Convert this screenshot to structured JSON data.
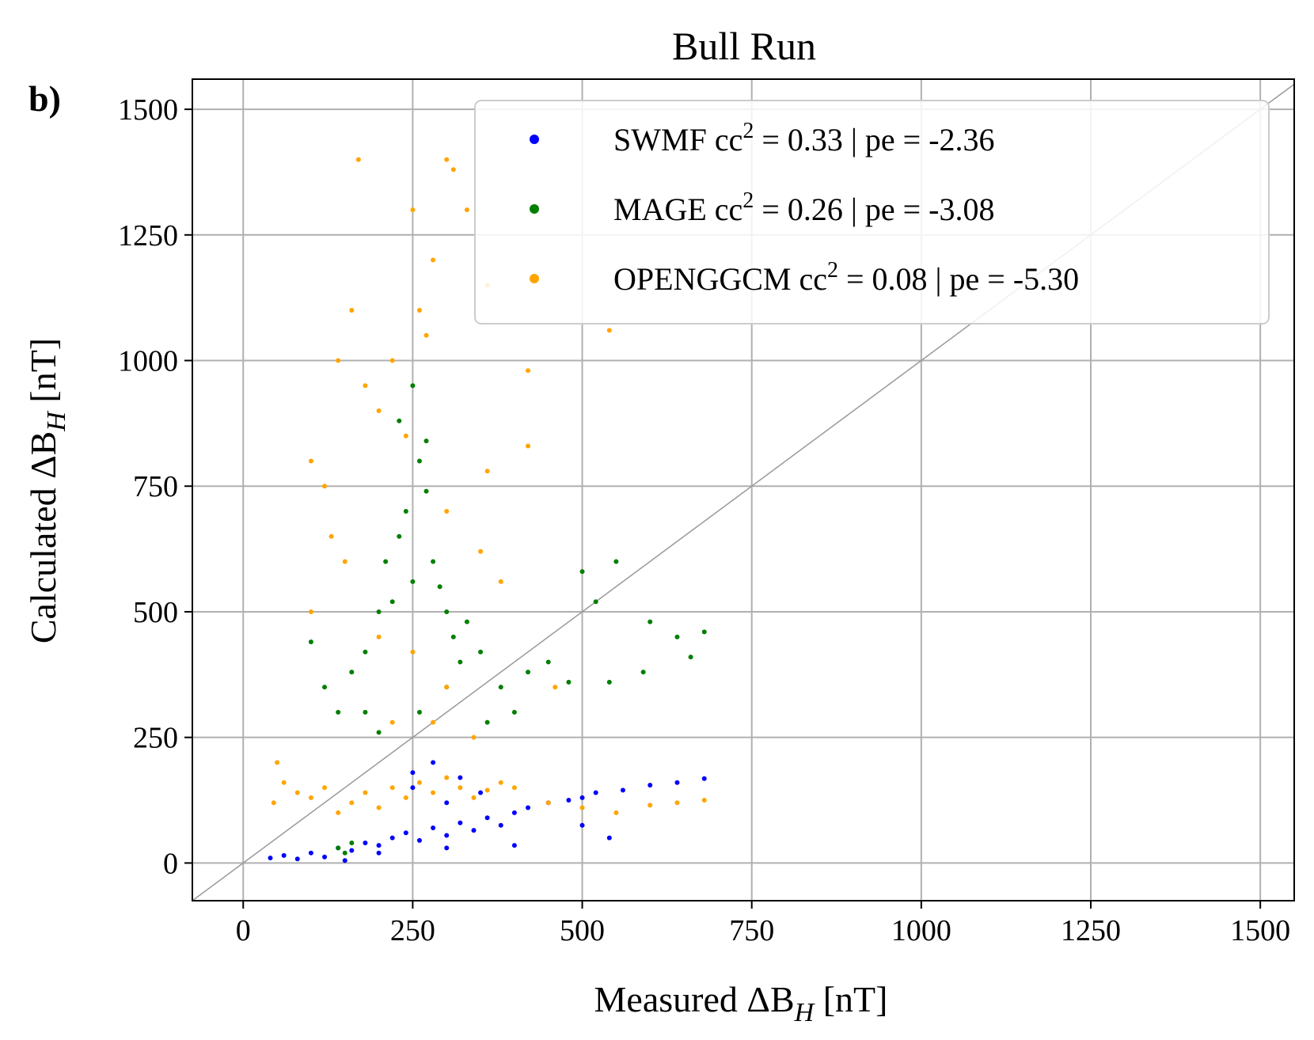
{
  "chart_data": {
    "type": "scatter",
    "title": "Bull Run",
    "panel_label": "b)",
    "xlabel": "Measured ΔB",
    "xlabel_sub": "H",
    "xlabel_unit": " [nT]",
    "ylabel": "Calculated ΔB",
    "ylabel_sub": "H",
    "ylabel_unit": " [nT]",
    "xlim": [
      -75,
      1550
    ],
    "ylim": [
      -75,
      1560
    ],
    "xticks": [
      0,
      250,
      500,
      750,
      1000,
      1250,
      1500
    ],
    "yticks": [
      0,
      250,
      500,
      750,
      1000,
      1250,
      1500
    ],
    "grid": true,
    "reference_line": "y = x",
    "legend_position": "top-right",
    "series": [
      {
        "name": "SWMF",
        "color": "#0000ff",
        "legend": "SWMF cc",
        "sup": "2",
        "legend_rest": " = 0.33 | pe = -2.36",
        "approx_points": [
          [
            40,
            10
          ],
          [
            60,
            15
          ],
          [
            80,
            8
          ],
          [
            100,
            20
          ],
          [
            120,
            12
          ],
          [
            140,
            30
          ],
          [
            160,
            25
          ],
          [
            180,
            40
          ],
          [
            200,
            35
          ],
          [
            220,
            50
          ],
          [
            240,
            60
          ],
          [
            260,
            45
          ],
          [
            280,
            70
          ],
          [
            300,
            55
          ],
          [
            320,
            80
          ],
          [
            340,
            65
          ],
          [
            360,
            90
          ],
          [
            380,
            75
          ],
          [
            400,
            100
          ],
          [
            420,
            110
          ],
          [
            450,
            120
          ],
          [
            480,
            125
          ],
          [
            500,
            130
          ],
          [
            520,
            140
          ],
          [
            560,
            145
          ],
          [
            600,
            155
          ],
          [
            640,
            160
          ],
          [
            680,
            168
          ],
          [
            250,
            180
          ],
          [
            300,
            120
          ],
          [
            350,
            140
          ],
          [
            200,
            20
          ],
          [
            150,
            5
          ],
          [
            500,
            75
          ],
          [
            540,
            50
          ],
          [
            400,
            35
          ],
          [
            300,
            30
          ],
          [
            250,
            150
          ],
          [
            280,
            200
          ],
          [
            320,
            170
          ]
        ]
      },
      {
        "name": "MAGE",
        "color": "#007f00",
        "legend": "MAGE cc",
        "sup": "2",
        "legend_rest": " = 0.26 | pe = -3.08",
        "approx_points": [
          [
            100,
            440
          ],
          [
            120,
            350
          ],
          [
            140,
            300
          ],
          [
            160,
            380
          ],
          [
            180,
            420
          ],
          [
            200,
            500
          ],
          [
            210,
            600
          ],
          [
            220,
            520
          ],
          [
            230,
            650
          ],
          [
            240,
            700
          ],
          [
            250,
            560
          ],
          [
            260,
            800
          ],
          [
            270,
            740
          ],
          [
            280,
            600
          ],
          [
            290,
            550
          ],
          [
            300,
            500
          ],
          [
            310,
            450
          ],
          [
            320,
            400
          ],
          [
            330,
            480
          ],
          [
            350,
            420
          ],
          [
            380,
            350
          ],
          [
            400,
            300
          ],
          [
            420,
            380
          ],
          [
            450,
            400
          ],
          [
            480,
            360
          ],
          [
            500,
            580
          ],
          [
            520,
            520
          ],
          [
            550,
            600
          ],
          [
            600,
            480
          ],
          [
            640,
            450
          ],
          [
            680,
            460
          ],
          [
            660,
            410
          ],
          [
            590,
            380
          ],
          [
            540,
            360
          ],
          [
            150,
            20
          ],
          [
            160,
            40
          ],
          [
            140,
            30
          ],
          [
            250,
            950
          ],
          [
            230,
            880
          ],
          [
            270,
            840
          ],
          [
            200,
            260
          ],
          [
            180,
            300
          ],
          [
            260,
            300
          ],
          [
            300,
            350
          ],
          [
            360,
            280
          ]
        ]
      },
      {
        "name": "OPENGGCM",
        "color": "#ffa500",
        "legend": "OPENGGCM cc",
        "sup": "2",
        "legend_rest": " = 0.08 | pe = -5.30",
        "approx_points": [
          [
            45,
            120
          ],
          [
            50,
            200
          ],
          [
            60,
            160
          ],
          [
            80,
            140
          ],
          [
            100,
            130
          ],
          [
            120,
            150
          ],
          [
            140,
            100
          ],
          [
            160,
            120
          ],
          [
            180,
            140
          ],
          [
            200,
            110
          ],
          [
            220,
            150
          ],
          [
            240,
            130
          ],
          [
            260,
            160
          ],
          [
            280,
            140
          ],
          [
            300,
            170
          ],
          [
            320,
            150
          ],
          [
            340,
            130
          ],
          [
            360,
            145
          ],
          [
            380,
            160
          ],
          [
            400,
            150
          ],
          [
            450,
            120
          ],
          [
            500,
            110
          ],
          [
            550,
            100
          ],
          [
            600,
            115
          ],
          [
            640,
            120
          ],
          [
            680,
            125
          ],
          [
            100,
            800
          ],
          [
            120,
            750
          ],
          [
            140,
            1000
          ],
          [
            160,
            1100
          ],
          [
            170,
            1400
          ],
          [
            180,
            950
          ],
          [
            200,
            900
          ],
          [
            220,
            1000
          ],
          [
            240,
            850
          ],
          [
            250,
            1300
          ],
          [
            260,
            1100
          ],
          [
            270,
            1050
          ],
          [
            280,
            1200
          ],
          [
            300,
            1400
          ],
          [
            310,
            1380
          ],
          [
            330,
            1300
          ],
          [
            360,
            1150
          ],
          [
            420,
            980
          ],
          [
            540,
            1060
          ],
          [
            360,
            780
          ],
          [
            420,
            830
          ],
          [
            300,
            700
          ],
          [
            350,
            620
          ],
          [
            380,
            560
          ],
          [
            200,
            450
          ],
          [
            250,
            420
          ],
          [
            300,
            350
          ],
          [
            280,
            280
          ],
          [
            220,
            280
          ],
          [
            460,
            350
          ],
          [
            340,
            250
          ],
          [
            100,
            500
          ],
          [
            150,
            600
          ],
          [
            130,
            650
          ]
        ]
      }
    ]
  }
}
